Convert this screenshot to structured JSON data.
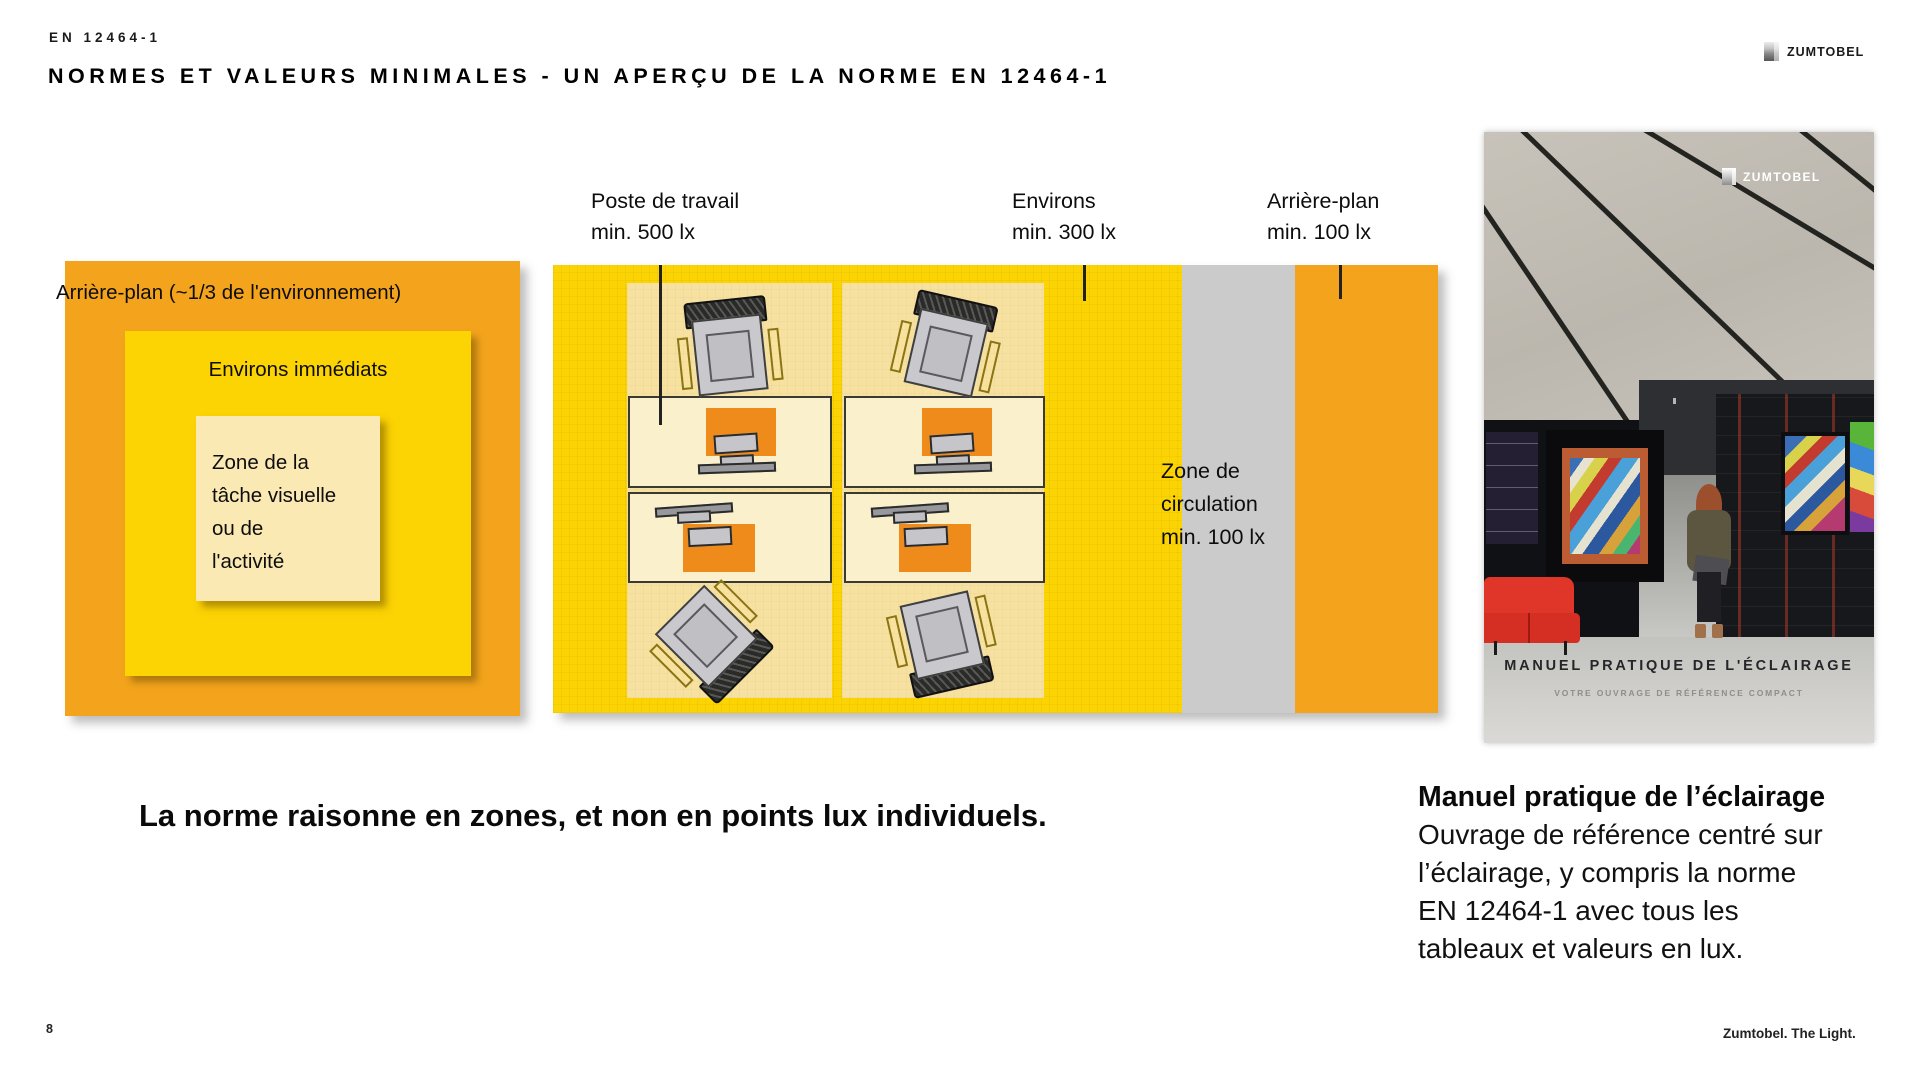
{
  "header": {
    "eyebrow": "EN 12464-1",
    "title": "NORMES ET VALEURS MINIMALES - UN APERÇU DE LA NORME EN 12464-1",
    "brand": "ZUMTOBEL"
  },
  "left_diagram": {
    "background_label": "Arrière-plan (~1/3 de l'environnement)",
    "surrounding_label": "Environs immédiats",
    "task_zone_label": "Zone de la\ntâche visuelle\nou de\nl'activité"
  },
  "plan": {
    "labels": [
      {
        "text": "Poste de travail\nmin. 500 lx"
      },
      {
        "text": "Environs\nmin. 300 lx"
      },
      {
        "text": "Arrière-plan\nmin. 100 lx"
      }
    ],
    "circulation_label": "Zone de\ncirculation\nmin. 100 lx"
  },
  "book_cover": {
    "brand": "ZUMTOBEL",
    "title": "MANUEL PRATIQUE DE L'ÉCLAIRAGE",
    "subtitle": "VOTRE OUVRAGE DE RÉFÉRENCE COMPACT"
  },
  "statement": "La norme raisonne en zones, et non en points lux individuels.",
  "book_info": {
    "heading": "Manuel pratique de l’éclairage",
    "body": "Ouvrage de référence centré sur\nl’éclairage, y compris la norme\nEN 12464-1 avec tous les\ntableaux et valeurs en lux."
  },
  "footer": {
    "page_number": "8",
    "tagline": "Zumtobel. The Light."
  },
  "colors": {
    "background_orange": "#F4A41C",
    "surrounding_yellow": "#FCD303",
    "task_cream": "#FBE9B4",
    "column_cream": "#F7E1A0",
    "desk_pad_orange": "#EF8B1A",
    "circulation_gray": "#CBCBCB",
    "sofa_red": "#E03529"
  }
}
